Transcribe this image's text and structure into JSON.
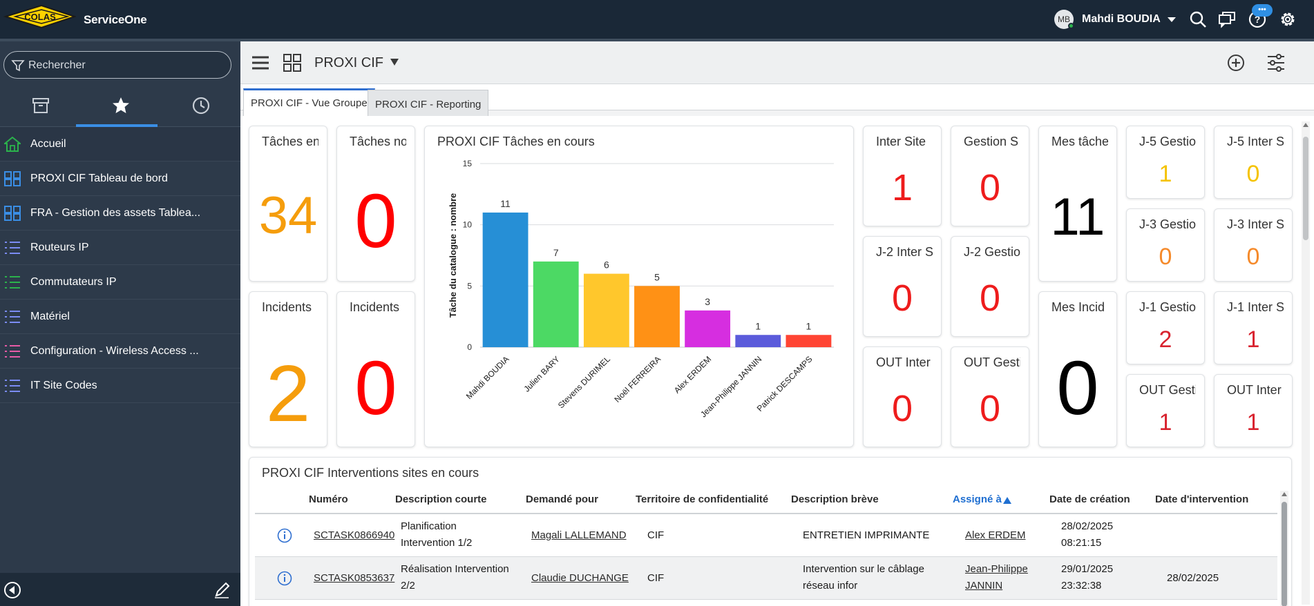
{
  "app": {
    "logo_text": "COLAS",
    "brand": "ServiceOne"
  },
  "topbar": {
    "avatar_initials": "MB",
    "user_name": "Mahdi BOUDIA",
    "badge": "•••",
    "icons": [
      "search-icon",
      "chat-icon",
      "help-icon",
      "gear-icon"
    ]
  },
  "sidebar": {
    "search_placeholder": "Rechercher",
    "tabs": [
      "archive-icon",
      "star-icon",
      "clock-icon"
    ],
    "items": [
      {
        "label": "Accueil",
        "icon": "home-icon",
        "color": "#2bb24c"
      },
      {
        "label": "PROXI CIF Tableau de bord",
        "icon": "dashboard-icon",
        "color": "#3a8ee5"
      },
      {
        "label": "FRA - Gestion des assets Tablea...",
        "icon": "dashboard-icon",
        "color": "#3a8ee5"
      },
      {
        "label": "Routeurs IP",
        "icon": "list-icon",
        "color": "#7b8cf5"
      },
      {
        "label": "Commutateurs IP",
        "icon": "list-icon",
        "color": "#2bb24c"
      },
      {
        "label": "Matériel",
        "icon": "list-icon",
        "color": "#7b8cf5"
      },
      {
        "label": "Configuration - Wireless Access ...",
        "icon": "list-icon",
        "color": "#e85ba7"
      },
      {
        "label": "IT Site Codes",
        "icon": "list-icon",
        "color": "#7b8cf5"
      }
    ]
  },
  "header": {
    "title": "PROXI CIF"
  },
  "tabs": [
    {
      "label": "PROXI CIF - Vue Groupe",
      "active": true
    },
    {
      "label": "PROXI CIF - Reporting",
      "active": false
    }
  ],
  "tiles": {
    "taches_en": {
      "title": "Tâches en",
      "value": "34",
      "color": "#f59d0c"
    },
    "taches_no": {
      "title": "Tâches no",
      "value": "0",
      "color": "#ff0000"
    },
    "incidents1": {
      "title": "Incidents",
      "value": "2",
      "color": "#f59d0c"
    },
    "incidents2": {
      "title": "Incidents",
      "value": "0",
      "color": "#ff0000"
    },
    "inter_site": {
      "title": "Inter Site",
      "value": "1",
      "color": "#ee1c1c"
    },
    "gestion_s": {
      "title": "Gestion S",
      "value": "0",
      "color": "#ee1c1c"
    },
    "j2_inter": {
      "title": "J-2 Inter S",
      "value": "0",
      "color": "#ee1c1c"
    },
    "j2_gestion": {
      "title": "J-2 Gestio",
      "value": "0",
      "color": "#ee1c1c"
    },
    "out_inter": {
      "title": "OUT Inter",
      "value": "0",
      "color": "#ee1c1c"
    },
    "out_gesti": {
      "title": "OUT Gesti",
      "value": "0",
      "color": "#ee1c1c"
    },
    "mes_taches": {
      "title": "Mes tâche",
      "value": "11",
      "color": "#000000"
    },
    "mes_incid": {
      "title": "Mes Incid",
      "value": "0",
      "color": "#000000"
    },
    "j5_gestion": {
      "title": "J-5 Gestio",
      "value": "1",
      "color": "#f5c300"
    },
    "j5_inter": {
      "title": "J-5 Inter S",
      "value": "0",
      "color": "#f5c300"
    },
    "j3_gestion": {
      "title": "J-3 Gestio",
      "value": "0",
      "color": "#f58a2b"
    },
    "j3_inter": {
      "title": "J-3 Inter S",
      "value": "0",
      "color": "#f58a2b"
    },
    "j1_gestion": {
      "title": "J-1 Gestio",
      "value": "2",
      "color": "#d8232f"
    },
    "j1_inter": {
      "title": "J-1 Inter S",
      "value": "1",
      "color": "#d8232f"
    },
    "out_gesti2": {
      "title": "OUT Gesti",
      "value": "1",
      "color": "#d8232f"
    },
    "out_inter2": {
      "title": "OUT Inter",
      "value": "1",
      "color": "#d8232f"
    }
  },
  "chart_data": {
    "type": "bar",
    "title": "PROXI CIF Tâches en cours",
    "ylabel": "Tâche du catalogue : nombre",
    "xlabel": "",
    "ylim": [
      0,
      15
    ],
    "yticks": [
      0,
      5,
      10,
      15
    ],
    "categories": [
      "Mahdi BOUDIA",
      "Julien BARY",
      "Stevens DURIMEL",
      "Noël FERREIRA",
      "Alex ERDEM",
      "Jean-Philippe JANNIN",
      "Patrick DESCAMPS"
    ],
    "values": [
      11,
      7,
      6,
      5,
      3,
      1,
      1
    ],
    "colors": [
      "#268fd6",
      "#4cd964",
      "#ffc72c",
      "#ff9115",
      "#d62ee0",
      "#5b5bdb",
      "#ff4433"
    ],
    "grid": true
  },
  "table": {
    "title": "PROXI CIF Interventions sites en cours",
    "columns": [
      "Numéro",
      "Description courte",
      "Demandé pour",
      "Territoire de confidentialité",
      "Description brève",
      "Assigné à",
      "Date de création",
      "Date d'intervention"
    ],
    "sorted_column": "Assigné à",
    "rows": [
      {
        "num": "SCTASK0866940",
        "desc1": "Planification",
        "desc2": "Intervention 1/2",
        "demande": "Magali LALLEMAND",
        "territoire": "CIF",
        "breve1": "ENTRETIEN IMPRIMANTE",
        "breve2": "",
        "assigne1": "Alex ERDEM",
        "assigne2": "",
        "date1": "28/02/2025",
        "date2": "08:21:15",
        "intervention": ""
      },
      {
        "num": "SCTASK0853637",
        "desc1": "Réalisation Intervention",
        "desc2": "2/2",
        "demande": "Claudie DUCHANGE",
        "territoire": "CIF",
        "breve1": "Intervention sur le câblage",
        "breve2": "réseau infor",
        "assigne1": "Jean-Philippe",
        "assigne2": "JANNIN",
        "date1": "29/01/2025",
        "date2": "23:32:38",
        "intervention": "28/02/2025"
      }
    ]
  }
}
